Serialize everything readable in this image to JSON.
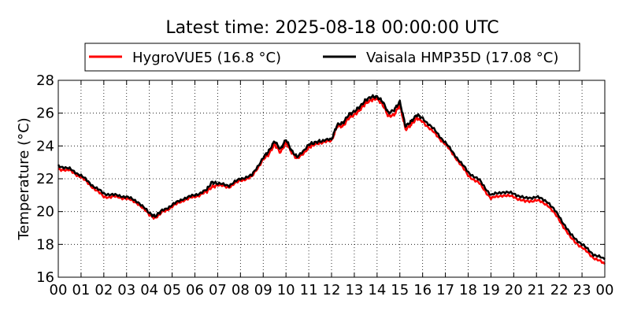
{
  "chart_data": {
    "type": "line",
    "title": "Latest time: 2025-08-18 00:00:00 UTC",
    "xlabel": "",
    "ylabel": "Temperature (°C)",
    "x_ticks": [
      "00",
      "01",
      "02",
      "03",
      "04",
      "05",
      "06",
      "07",
      "08",
      "09",
      "10",
      "11",
      "12",
      "13",
      "14",
      "15",
      "16",
      "17",
      "18",
      "19",
      "20",
      "21",
      "22",
      "23",
      "00"
    ],
    "y_ticks": [
      "16",
      "18",
      "20",
      "22",
      "24",
      "26",
      "28"
    ],
    "xlim": [
      0,
      24
    ],
    "ylim": [
      16,
      28
    ],
    "grid": true,
    "legend_position": "top-center",
    "x": [
      0,
      0.5,
      1,
      1.5,
      2,
      2.5,
      3,
      3.5,
      4,
      4.25,
      4.5,
      5,
      5.5,
      6,
      6.5,
      6.75,
      7,
      7.5,
      8,
      8.5,
      9,
      9.25,
      9.5,
      9.75,
      10,
      10.25,
      10.5,
      11,
      11.25,
      11.5,
      12,
      12.25,
      12.5,
      12.75,
      13,
      13.25,
      13.5,
      13.75,
      14,
      14.25,
      14.5,
      14.75,
      15,
      15.25,
      15.5,
      15.75,
      16,
      16.5,
      17,
      17.5,
      18,
      18.5,
      19,
      19.5,
      20,
      20.5,
      21,
      21.5,
      22,
      22.5,
      23,
      23.5,
      24
    ],
    "series": [
      {
        "name": "HygroVUE5 (16.8 °C)",
        "color": "#ff0000",
        "values": [
          22.6,
          22.5,
          22.1,
          21.5,
          20.9,
          20.9,
          20.8,
          20.5,
          19.8,
          19.6,
          19.9,
          20.3,
          20.7,
          20.9,
          21.2,
          21.5,
          21.6,
          21.5,
          21.9,
          22.1,
          23.2,
          23.5,
          24.1,
          23.6,
          24.2,
          23.6,
          23.2,
          23.9,
          24.1,
          24.2,
          24.3,
          25.2,
          25.2,
          25.7,
          25.9,
          26.2,
          26.6,
          26.8,
          26.9,
          26.5,
          25.8,
          25.9,
          26.5,
          25.0,
          25.3,
          25.7,
          25.5,
          24.8,
          24.1,
          23.2,
          22.2,
          21.7,
          20.8,
          21.0,
          20.9,
          20.6,
          20.7,
          20.4,
          19.5,
          18.4,
          17.8,
          17.2,
          16.8
        ]
      },
      {
        "name": "Vaisala HMP35D (17.08 °C)",
        "color": "#000000",
        "values": [
          22.8,
          22.6,
          22.2,
          21.6,
          21.1,
          21.0,
          20.9,
          20.6,
          19.9,
          19.7,
          20.0,
          20.4,
          20.8,
          21.0,
          21.3,
          21.8,
          21.7,
          21.6,
          22.0,
          22.2,
          23.3,
          23.7,
          24.3,
          23.8,
          24.4,
          23.7,
          23.3,
          24.1,
          24.2,
          24.3,
          24.4,
          25.3,
          25.4,
          25.9,
          26.1,
          26.4,
          26.8,
          27.0,
          27.0,
          26.7,
          26.0,
          26.2,
          26.7,
          25.2,
          25.5,
          25.9,
          25.7,
          25.0,
          24.2,
          23.3,
          22.4,
          21.9,
          21.0,
          21.2,
          21.1,
          20.8,
          20.9,
          20.6,
          19.7,
          18.6,
          18.0,
          17.4,
          17.08
        ]
      }
    ]
  }
}
